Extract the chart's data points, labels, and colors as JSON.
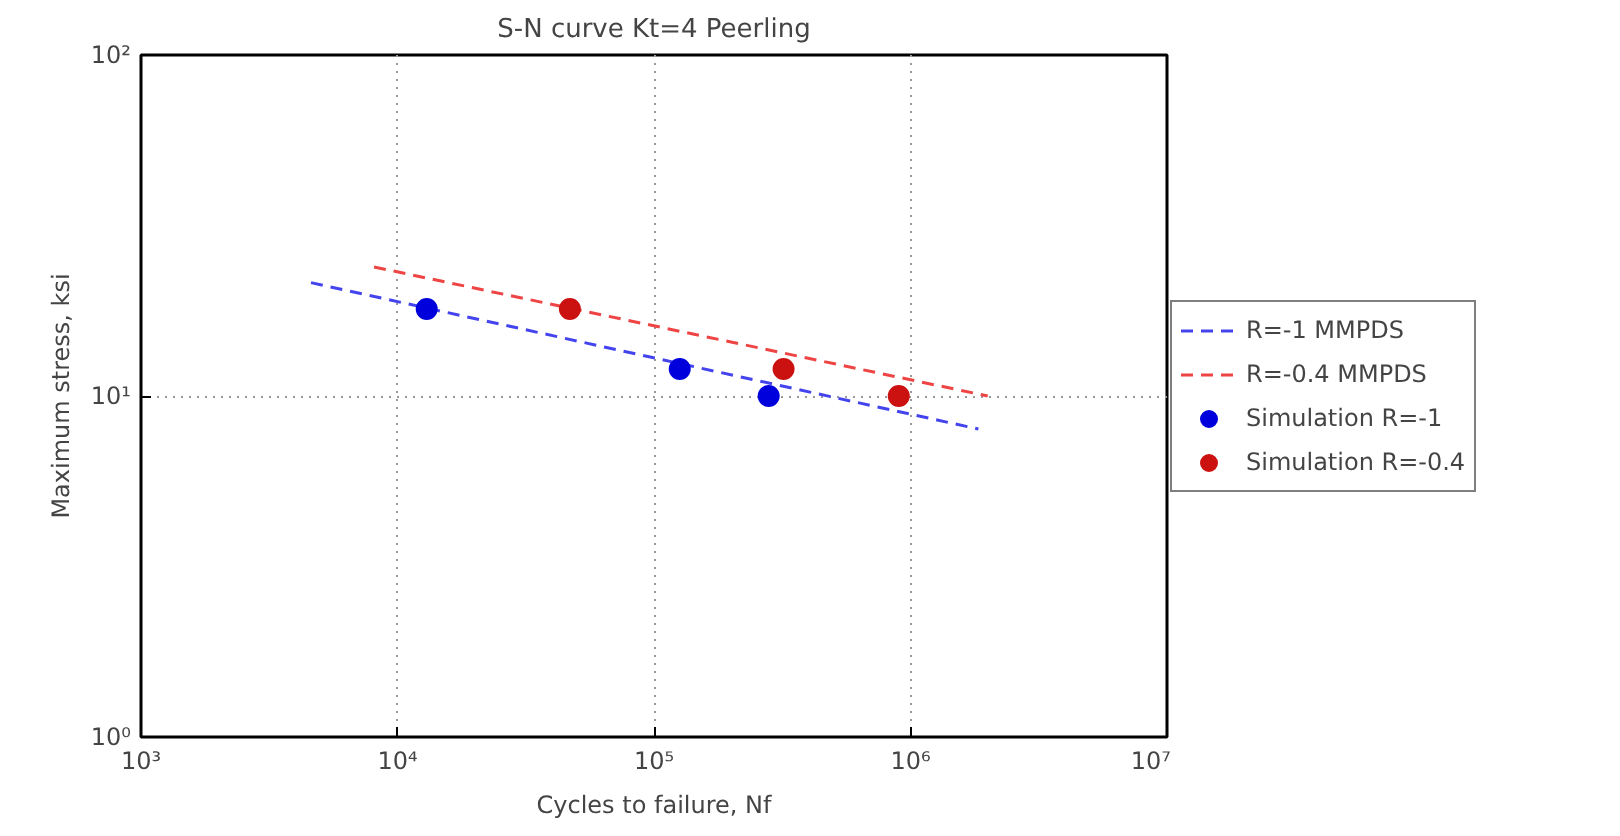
{
  "chart_data": {
    "type": "line",
    "title": "S-N curve Kt=4 Peerling",
    "xlabel": "Cycles to failure, Nf",
    "ylabel": "Maximum stress, ksi",
    "log": "xy",
    "grid": true,
    "legend": "right",
    "xlim": [
      1000,
      10000000
    ],
    "ylim": [
      1,
      100
    ],
    "xticks": [
      {
        "value": 1000,
        "label": "10³"
      },
      {
        "value": 10000,
        "label": "10⁴"
      },
      {
        "value": 100000,
        "label": "10⁵"
      },
      {
        "value": 1000000,
        "label": "10⁶"
      },
      {
        "value": 10000000,
        "label": "10⁷"
      }
    ],
    "yticks": [
      {
        "value": 1,
        "label": "10⁰"
      },
      {
        "value": 10,
        "label": "10¹"
      },
      {
        "value": 100,
        "label": "10²"
      }
    ],
    "series": [
      {
        "name": "R=-1 MMPDS",
        "line_style": "dashed",
        "marker": "none",
        "color": "#4444ee",
        "x": [
          4600,
          1840000
        ],
        "values": [
          21.5,
          8.0
        ]
      },
      {
        "name": "R=-0.4 MMPDS",
        "line_style": "dashed",
        "marker": "none",
        "color": "#ee4444",
        "x": [
          8100,
          2000000
        ],
        "values": [
          23.9,
          10
        ]
      },
      {
        "name": "Simulation R=-1",
        "type": "scatter",
        "marker": "circle",
        "color": "#0000dd",
        "x": [
          13000,
          126000,
          280000
        ],
        "values": [
          18,
          12,
          10
        ]
      },
      {
        "name": "Simulation R=-0.4",
        "type": "scatter",
        "marker": "circle",
        "color": "#cc1111",
        "x": [
          47000,
          320000,
          900000
        ],
        "values": [
          18,
          12,
          10
        ]
      }
    ]
  }
}
